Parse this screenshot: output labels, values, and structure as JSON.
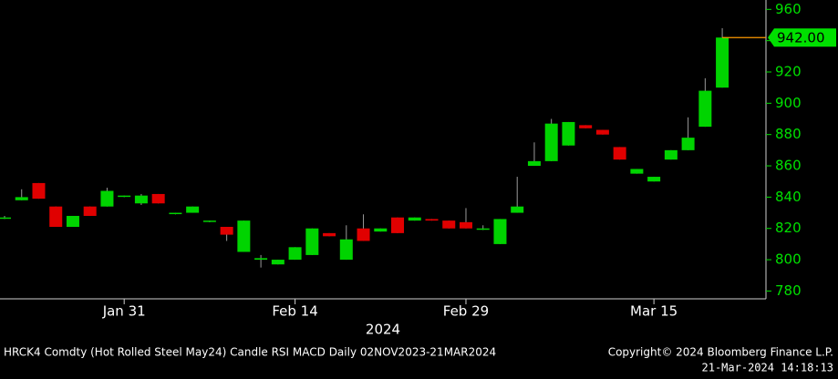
{
  "chart_data": {
    "type": "candlestick",
    "categories": [
      null,
      null,
      null,
      null,
      null,
      null,
      null,
      "Jan 31",
      null,
      null,
      null,
      null,
      null,
      null,
      null,
      null,
      null,
      "Feb 14",
      null,
      null,
      null,
      null,
      null,
      null,
      null,
      null,
      null,
      "Feb 29",
      null,
      null,
      null,
      null,
      null,
      null,
      null,
      null,
      null,
      null,
      "Mar 15",
      null,
      null,
      null,
      null
    ],
    "x_group_label": "2024",
    "series": [
      {
        "name": "open",
        "values": [
          827,
          838,
          849,
          834,
          821,
          834,
          834,
          841,
          836,
          842,
          830,
          830,
          825,
          821,
          805,
          800,
          797,
          800,
          803,
          817,
          800,
          820,
          818,
          827,
          825,
          826,
          825,
          824,
          820,
          810,
          830,
          860,
          863,
          873,
          886,
          883,
          872,
          855,
          850,
          864,
          870,
          885,
          910
        ]
      },
      {
        "name": "high",
        "values": [
          828,
          845,
          849,
          834,
          828,
          834,
          846,
          841,
          842,
          842,
          830,
          834,
          825,
          821,
          825,
          803,
          800,
          808,
          820,
          817,
          822,
          829,
          820,
          827,
          827,
          826,
          825,
          833,
          822,
          826,
          853,
          875,
          890,
          888,
          886,
          883,
          872,
          858,
          853,
          870,
          891,
          916,
          948
        ]
      },
      {
        "name": "low",
        "values": [
          826,
          838,
          839,
          821,
          821,
          828,
          834,
          840,
          835,
          836,
          829,
          830,
          824,
          812,
          805,
          795,
          797,
          800,
          803,
          815,
          800,
          812,
          818,
          817,
          825,
          825,
          820,
          820,
          819,
          810,
          830,
          860,
          863,
          873,
          884,
          880,
          864,
          855,
          850,
          864,
          870,
          885,
          910
        ]
      },
      {
        "name": "close",
        "values": [
          827,
          840,
          839,
          821,
          828,
          828,
          844,
          841,
          841,
          836,
          830,
          834,
          825,
          816,
          825,
          801,
          800,
          808,
          820,
          815,
          813,
          812,
          820,
          817,
          827,
          825,
          820,
          820,
          820,
          826,
          834,
          863,
          887,
          888,
          884,
          880,
          864,
          858,
          853,
          870,
          878,
          908,
          942
        ]
      }
    ],
    "up_color": "#00d400",
    "down_color": "#e00000",
    "last_price": {
      "value": 942,
      "label": "942.00"
    },
    "last_price_color": "#ff9900",
    "ylim": [
      775,
      966
    ],
    "yticks": [
      780,
      800,
      820,
      840,
      860,
      880,
      900,
      920,
      940,
      960
    ],
    "footer_left": "HRCK4 Comdty (Hot Rolled Steel  May24) Candle RSI MACD  Daily 02NOV2023-21MAR2024",
    "footer_right": "Copyright© 2024 Bloomberg Finance L.P.",
    "footer_timestamp": "21-Mar-2024 14:18:13"
  }
}
